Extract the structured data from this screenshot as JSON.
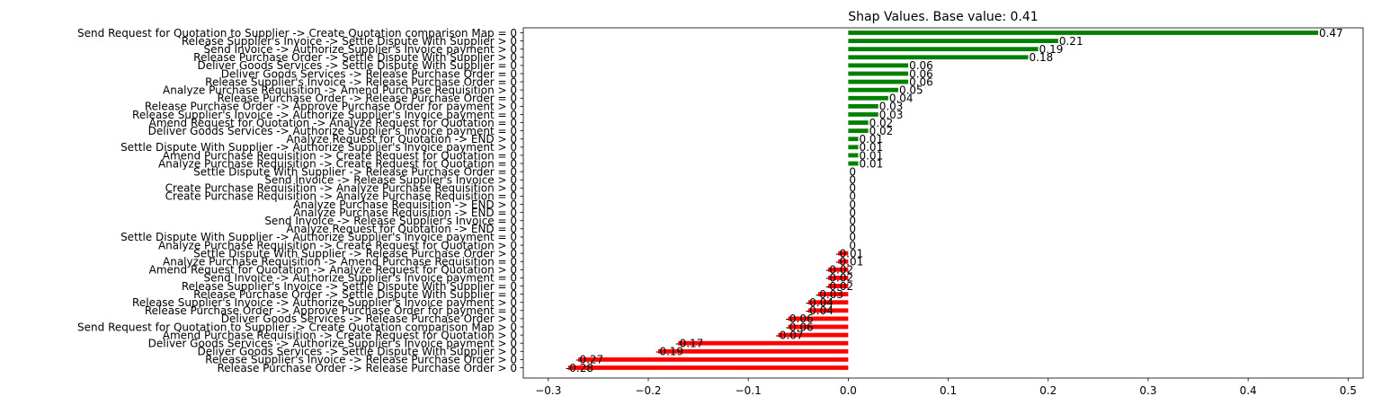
{
  "chart_data": {
    "type": "bar",
    "orientation": "horizontal",
    "title": "Shap Values. Base value: 0.41",
    "xlim": [
      -0.325,
      0.515
    ],
    "xticks": [
      -0.3,
      -0.2,
      -0.1,
      0.0,
      0.1,
      0.2,
      0.3,
      0.4,
      0.5
    ],
    "xtick_labels": [
      "−0.3",
      "−0.2",
      "−0.1",
      "0.0",
      "0.1",
      "0.2",
      "0.3",
      "0.4",
      "0.5"
    ],
    "positive_color": "#008000",
    "negative_color": "#ff0000",
    "categories": [
      "Send Request for Quotation to Supplier -> Create Quotation comparison Map = 0",
      "Release Supplier's Invoice -> Settle Dispute With Supplier > 0",
      "Send Invoice -> Authorize Supplier's Invoice payment > 0",
      "Release Purchase Order -> Settle Dispute With Supplier > 0",
      "Deliver Goods Services -> Settle Dispute With Supplier = 0",
      "Deliver Goods Services -> Release Purchase Order = 0",
      "Release Supplier's Invoice -> Release Purchase Order = 0",
      "Analyze Purchase Requisition -> Amend Purchase Requisition > 0",
      "Release Purchase Order -> Release Purchase Order = 0",
      "Release Purchase Order -> Approve Purchase Order for payment > 0",
      "Release Supplier's Invoice -> Authorize Supplier's Invoice payment = 0",
      "Amend Request for Quotation -> Analyze Request for Quotation = 0",
      "Deliver Goods Services -> Authorize Supplier's Invoice payment = 0",
      "Analyze Request for Quotation -> END > 0",
      "Settle Dispute With Supplier -> Authorize Supplier's Invoice payment > 0",
      "Amend Purchase Requisition -> Create Request for Quotation = 0",
      "Analyze Purchase Requisition -> Create Request for Quotation = 0",
      "Settle Dispute With Supplier -> Release Purchase Order = 0",
      "Send Invoice -> Release Supplier's Invoice > 0",
      "Create Purchase Requisition -> Analyze Purchase Requisition > 0",
      "Create Purchase Requisition -> Analyze Purchase Requisition = 0",
      "Analyze Purchase Requisition -> END > 0",
      "Analyze Purchase Requisition -> END = 0",
      "Send Invoice -> Release Supplier's Invoice = 0",
      "Analyze Request for Quotation -> END = 0",
      "Settle Dispute With Supplier -> Authorize Supplier's Invoice payment = 0",
      "Analyze Purchase Requisition -> Create Request for Quotation > 0",
      "Settle Dispute With Supplier -> Release Purchase Order > 0",
      "Analyze Purchase Requisition -> Amend Purchase Requisition = 0",
      "Amend Request for Quotation -> Analyze Request for Quotation > 0",
      "Send Invoice -> Authorize Supplier's Invoice payment = 0",
      "Release Supplier's Invoice -> Settle Dispute With Supplier = 0",
      "Release Purchase Order -> Settle Dispute With Supplier = 0",
      "Release Supplier's Invoice -> Authorize Supplier's Invoice payment > 0",
      "Release Purchase Order -> Approve Purchase Order for payment = 0",
      "Deliver Goods Services -> Release Purchase Order > 0",
      "Send Request for Quotation to Supplier -> Create Quotation comparison Map > 0",
      "Amend Purchase Requisition -> Create Request for Quotation > 0",
      "Deliver Goods Services -> Authorize Supplier's Invoice payment > 0",
      "Deliver Goods Services -> Settle Dispute With Supplier > 0",
      "Release Supplier's Invoice -> Release Purchase Order > 0",
      "Release Purchase Order -> Release Purchase Order > 0"
    ],
    "values": [
      0.47,
      0.21,
      0.19,
      0.18,
      0.06,
      0.06,
      0.06,
      0.05,
      0.04,
      0.03,
      0.03,
      0.02,
      0.02,
      0.01,
      0.01,
      0.01,
      0.01,
      0,
      0,
      0,
      0,
      0,
      0,
      0,
      0,
      0,
      0,
      -0.01,
      -0.01,
      -0.02,
      -0.02,
      -0.02,
      -0.03,
      -0.04,
      -0.04,
      -0.06,
      -0.06,
      -0.07,
      -0.17,
      -0.19,
      -0.27,
      -0.28
    ],
    "labels": [
      "0.47",
      "0.21",
      "0.19",
      "0.18",
      "0.06",
      "0.06",
      "0.06",
      "0.05",
      "0.04",
      "0.03",
      "0.03",
      "0.02",
      "0.02",
      "0.01",
      "0.01",
      "0.01",
      "0.01",
      "0",
      "0",
      "0",
      "0",
      "0",
      "0",
      "0",
      "0",
      "0",
      "0",
      "-0.01",
      "-0.01",
      "-0.02",
      "-0.02",
      "-0.02",
      "-0.03",
      "-0.04",
      "-0.04",
      "-0.06",
      "-0.06",
      "-0.07",
      "-0.17",
      "-0.19",
      "-0.27",
      "-0.28"
    ]
  }
}
